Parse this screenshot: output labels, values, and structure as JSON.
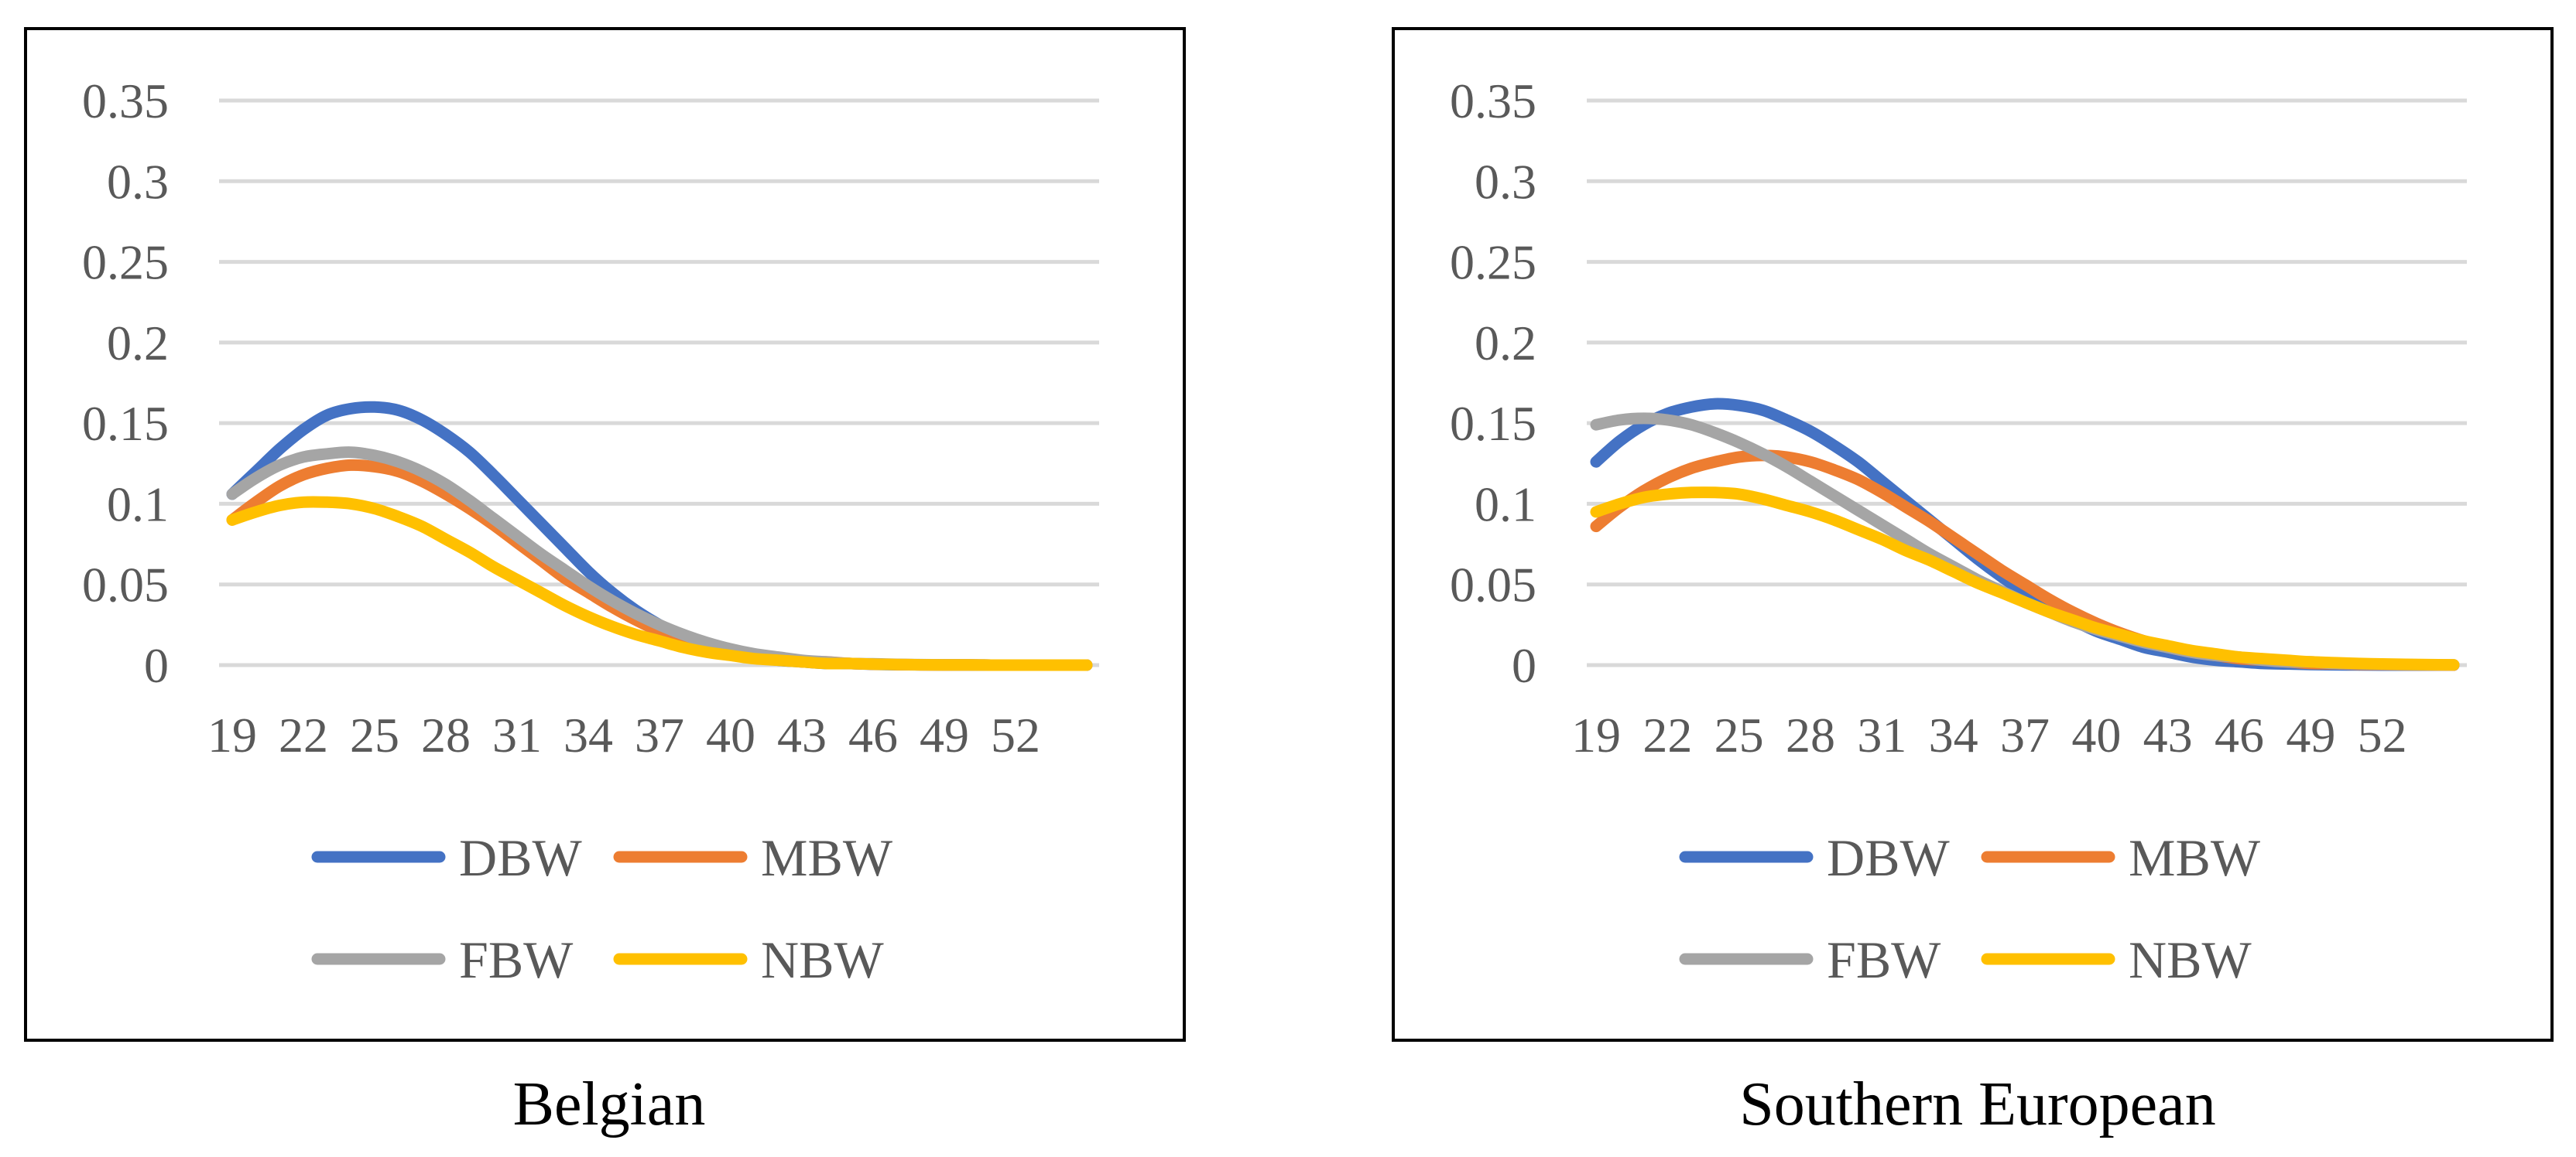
{
  "colors": {
    "DBW": "#4472C4",
    "MBW": "#ED7D31",
    "FBW": "#A5A5A5",
    "NBW": "#FFC000",
    "grid": "#D9D9D9",
    "axis_text": "#595959",
    "caption_text": "#000000",
    "frame": "#000000"
  },
  "chart_data": [
    {
      "type": "line",
      "title": "",
      "caption": "Belgian",
      "xlabel": "",
      "ylabel": "",
      "x": [
        19,
        20,
        21,
        22,
        23,
        24,
        25,
        26,
        27,
        28,
        29,
        30,
        31,
        32,
        33,
        34,
        35,
        36,
        37,
        38,
        39,
        40,
        41,
        42,
        43,
        44,
        45,
        46,
        47,
        48,
        49,
        50,
        51,
        52,
        53,
        54,
        55
      ],
      "tick_labels_x": [
        "19",
        "22",
        "25",
        "28",
        "31",
        "34",
        "37",
        "40",
        "43",
        "46",
        "49",
        "52"
      ],
      "tick_labels_y": [
        "0",
        "0.05",
        "0.1",
        "0.15",
        "0.2",
        "0.25",
        "0.3",
        "0.35"
      ],
      "ylim": [
        0,
        0.35
      ],
      "grid": true,
      "legend": [
        "DBW",
        "MBW",
        "FBW",
        "NBW"
      ],
      "legend_position": "bottom",
      "series": [
        {
          "name": "DBW",
          "values": [
            0.106,
            0.12,
            0.134,
            0.146,
            0.155,
            0.159,
            0.16,
            0.158,
            0.152,
            0.143,
            0.132,
            0.118,
            0.103,
            0.088,
            0.073,
            0.058,
            0.045,
            0.034,
            0.025,
            0.018,
            0.012,
            0.008,
            0.005,
            0.003,
            0.002,
            0.001,
            0.001,
            0.0005,
            0.0003,
            0.0002,
            0.0001,
            0.0001,
            0.0,
            0.0,
            0.0,
            0.0,
            0.0
          ]
        },
        {
          "name": "MBW",
          "values": [
            0.09,
            0.101,
            0.111,
            0.118,
            0.122,
            0.124,
            0.123,
            0.12,
            0.114,
            0.106,
            0.097,
            0.087,
            0.076,
            0.065,
            0.054,
            0.045,
            0.036,
            0.028,
            0.021,
            0.016,
            0.011,
            0.008,
            0.005,
            0.004,
            0.002,
            0.002,
            0.001,
            0.0006,
            0.0004,
            0.0002,
            0.0001,
            0.0001,
            0.0,
            0.0,
            0.0,
            0.0,
            0.0
          ]
        },
        {
          "name": "FBW",
          "values": [
            0.106,
            0.116,
            0.124,
            0.129,
            0.131,
            0.132,
            0.13,
            0.126,
            0.12,
            0.112,
            0.102,
            0.091,
            0.08,
            0.069,
            0.059,
            0.049,
            0.04,
            0.032,
            0.025,
            0.019,
            0.014,
            0.01,
            0.007,
            0.005,
            0.003,
            0.002,
            0.001,
            0.0008,
            0.0005,
            0.0003,
            0.0002,
            0.0001,
            0.0,
            0.0,
            0.0,
            0.0,
            0.0
          ]
        },
        {
          "name": "NBW",
          "values": [
            0.09,
            0.095,
            0.099,
            0.101,
            0.101,
            0.1,
            0.097,
            0.092,
            0.086,
            0.078,
            0.07,
            0.061,
            0.053,
            0.045,
            0.037,
            0.03,
            0.024,
            0.019,
            0.015,
            0.011,
            0.008,
            0.006,
            0.004,
            0.003,
            0.002,
            0.001,
            0.001,
            0.0006,
            0.0004,
            0.0002,
            0.0001,
            0.0001,
            0.0,
            0.0,
            0.0,
            0.0,
            0.0
          ]
        }
      ]
    },
    {
      "type": "line",
      "title": "",
      "caption": "Southern European",
      "xlabel": "",
      "ylabel": "",
      "x": [
        19,
        20,
        21,
        22,
        23,
        24,
        25,
        26,
        27,
        28,
        29,
        30,
        31,
        32,
        33,
        34,
        35,
        36,
        37,
        38,
        39,
        40,
        41,
        42,
        43,
        44,
        45,
        46,
        47,
        48,
        49,
        50,
        51,
        52,
        53,
        54,
        55
      ],
      "tick_labels_x": [
        "19",
        "22",
        "25",
        "28",
        "31",
        "34",
        "37",
        "40",
        "43",
        "46",
        "49",
        "52"
      ],
      "tick_labels_y": [
        "0",
        "0.05",
        "0.1",
        "0.15",
        "0.2",
        "0.25",
        "0.3",
        "0.35"
      ],
      "ylim": [
        0,
        0.35
      ],
      "grid": true,
      "legend": [
        "DBW",
        "MBW",
        "FBW",
        "NBW"
      ],
      "legend_position": "bottom",
      "series": [
        {
          "name": "DBW",
          "values": [
            0.126,
            0.139,
            0.149,
            0.156,
            0.16,
            0.162,
            0.161,
            0.158,
            0.152,
            0.145,
            0.136,
            0.126,
            0.114,
            0.102,
            0.09,
            0.078,
            0.066,
            0.055,
            0.045,
            0.036,
            0.028,
            0.021,
            0.016,
            0.011,
            0.008,
            0.005,
            0.003,
            0.002,
            0.001,
            0.0007,
            0.0004,
            0.0002,
            0.0001,
            0.0,
            0.0,
            0.0,
            0.0
          ]
        },
        {
          "name": "MBW",
          "values": [
            0.086,
            0.098,
            0.108,
            0.116,
            0.122,
            0.126,
            0.129,
            0.13,
            0.129,
            0.126,
            0.121,
            0.115,
            0.107,
            0.098,
            0.089,
            0.079,
            0.069,
            0.059,
            0.05,
            0.041,
            0.033,
            0.026,
            0.02,
            0.015,
            0.011,
            0.008,
            0.006,
            0.004,
            0.003,
            0.002,
            0.001,
            0.0008,
            0.0005,
            0.0003,
            0.0002,
            0.0001,
            0.0
          ]
        },
        {
          "name": "FBW",
          "values": [
            0.149,
            0.152,
            0.153,
            0.152,
            0.149,
            0.144,
            0.138,
            0.131,
            0.123,
            0.114,
            0.105,
            0.096,
            0.087,
            0.078,
            0.069,
            0.061,
            0.053,
            0.046,
            0.039,
            0.033,
            0.027,
            0.022,
            0.018,
            0.014,
            0.011,
            0.008,
            0.006,
            0.005,
            0.003,
            0.002,
            0.002,
            0.001,
            0.0008,
            0.0005,
            0.0003,
            0.0002,
            0.0001
          ]
        },
        {
          "name": "NBW",
          "values": [
            0.095,
            0.1,
            0.104,
            0.106,
            0.107,
            0.107,
            0.106,
            0.103,
            0.099,
            0.095,
            0.09,
            0.084,
            0.078,
            0.071,
            0.065,
            0.058,
            0.051,
            0.045,
            0.039,
            0.033,
            0.028,
            0.023,
            0.019,
            0.015,
            0.012,
            0.009,
            0.007,
            0.005,
            0.004,
            0.003,
            0.002,
            0.0015,
            0.001,
            0.0007,
            0.0005,
            0.0003,
            0.0002
          ]
        }
      ]
    }
  ]
}
